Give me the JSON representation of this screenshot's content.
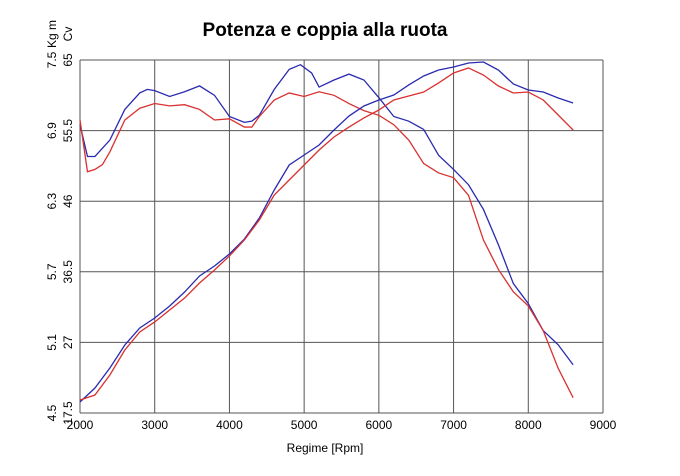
{
  "chart_data": {
    "type": "line",
    "title": "Potenza e coppia alla ruota",
    "xlabel": "Regime [Rpm]",
    "ylabel": "Kg m",
    "y2label": "Cv",
    "xlim": [
      2000,
      9000
    ],
    "xticks": [
      2000,
      3000,
      4000,
      5000,
      6000,
      7000,
      8000,
      9000
    ],
    "ylim": [
      4.5,
      7.5
    ],
    "yticks": [
      4.5,
      5.1,
      5.7,
      6.3,
      6.9,
      7.5
    ],
    "y2lim": [
      17.5,
      65
    ],
    "y2ticks": [
      17.5,
      27,
      36.5,
      46,
      55.5,
      65
    ],
    "grid": true,
    "series": [
      {
        "color": "#2a2ab0",
        "axis": "y",
        "x": [
          2000,
          2100,
          2200,
          2400,
          2600,
          2800,
          2900,
          3000,
          3200,
          3400,
          3600,
          3800,
          4000,
          4200,
          4300,
          4400,
          4600,
          4800,
          4950,
          5100,
          5200,
          5400,
          5600,
          5800,
          6000,
          6200,
          6400,
          6600,
          6800,
          7000,
          7200,
          7400,
          7600,
          7800,
          8000,
          8200,
          8400,
          8600
        ],
        "values": [
          6.95,
          6.68,
          6.68,
          6.82,
          7.08,
          7.22,
          7.25,
          7.24,
          7.19,
          7.23,
          7.28,
          7.2,
          7.02,
          6.97,
          6.98,
          7.03,
          7.25,
          7.42,
          7.46,
          7.39,
          7.27,
          7.33,
          7.38,
          7.33,
          7.18,
          7.02,
          6.98,
          6.91,
          6.69,
          6.57,
          6.44,
          6.23,
          5.93,
          5.6,
          5.43,
          5.2,
          5.08,
          4.91
        ]
      },
      {
        "color": "#d93030",
        "axis": "y",
        "x": [
          2000,
          2100,
          2200,
          2300,
          2400,
          2600,
          2800,
          3000,
          3200,
          3400,
          3600,
          3800,
          4000,
          4200,
          4300,
          4400,
          4600,
          4800,
          5000,
          5200,
          5400,
          5600,
          5800,
          6000,
          6200,
          6400,
          6600,
          6800,
          7000,
          7200,
          7400,
          7600,
          7800,
          8000,
          8200,
          8400,
          8600
        ],
        "values": [
          6.99,
          6.55,
          6.57,
          6.61,
          6.72,
          6.99,
          7.09,
          7.13,
          7.11,
          7.12,
          7.08,
          6.99,
          7.0,
          6.93,
          6.93,
          7.02,
          7.16,
          7.22,
          7.19,
          7.23,
          7.2,
          7.13,
          7.07,
          7.03,
          6.95,
          6.82,
          6.62,
          6.54,
          6.5,
          6.35,
          5.97,
          5.72,
          5.53,
          5.41,
          5.2,
          4.88,
          4.63
        ]
      },
      {
        "color": "#2a2ab0",
        "axis": "y2",
        "x": [
          2000,
          2200,
          2400,
          2600,
          2800,
          3000,
          3200,
          3400,
          3600,
          3800,
          4000,
          4200,
          4400,
          4600,
          4800,
          5000,
          5200,
          5400,
          5600,
          5800,
          6000,
          6200,
          6400,
          6600,
          6800,
          7000,
          7200,
          7400,
          7600,
          7800,
          8000,
          8200,
          8400,
          8600
        ],
        "values": [
          18.98,
          20.86,
          23.56,
          26.65,
          28.94,
          30.28,
          31.9,
          33.78,
          35.94,
          37.28,
          38.9,
          40.91,
          43.74,
          47.51,
          50.87,
          52.22,
          53.56,
          55.58,
          57.46,
          58.81,
          59.62,
          60.29,
          61.64,
          62.85,
          63.65,
          64.06,
          64.6,
          64.73,
          63.65,
          61.77,
          60.96,
          60.69,
          59.89,
          59.21
        ]
      },
      {
        "color": "#d93030",
        "axis": "y2",
        "x": [
          2000,
          2200,
          2400,
          2600,
          2800,
          3000,
          3200,
          3400,
          3600,
          3800,
          4000,
          4200,
          4400,
          4600,
          4800,
          5000,
          5200,
          5400,
          5600,
          5800,
          6000,
          6200,
          6400,
          6600,
          6800,
          7000,
          7200,
          7400,
          7600,
          7800,
          8000,
          8200,
          8400,
          8600
        ],
        "values": [
          19.25,
          19.92,
          22.61,
          25.98,
          28.4,
          29.75,
          31.36,
          32.97,
          34.99,
          36.74,
          38.63,
          40.78,
          43.47,
          46.83,
          48.85,
          50.87,
          52.89,
          54.64,
          55.98,
          57.2,
          58.27,
          59.62,
          60.16,
          60.69,
          61.91,
          63.25,
          63.93,
          62.98,
          61.5,
          60.56,
          60.69,
          59.62,
          57.6,
          55.58
        ]
      }
    ]
  }
}
